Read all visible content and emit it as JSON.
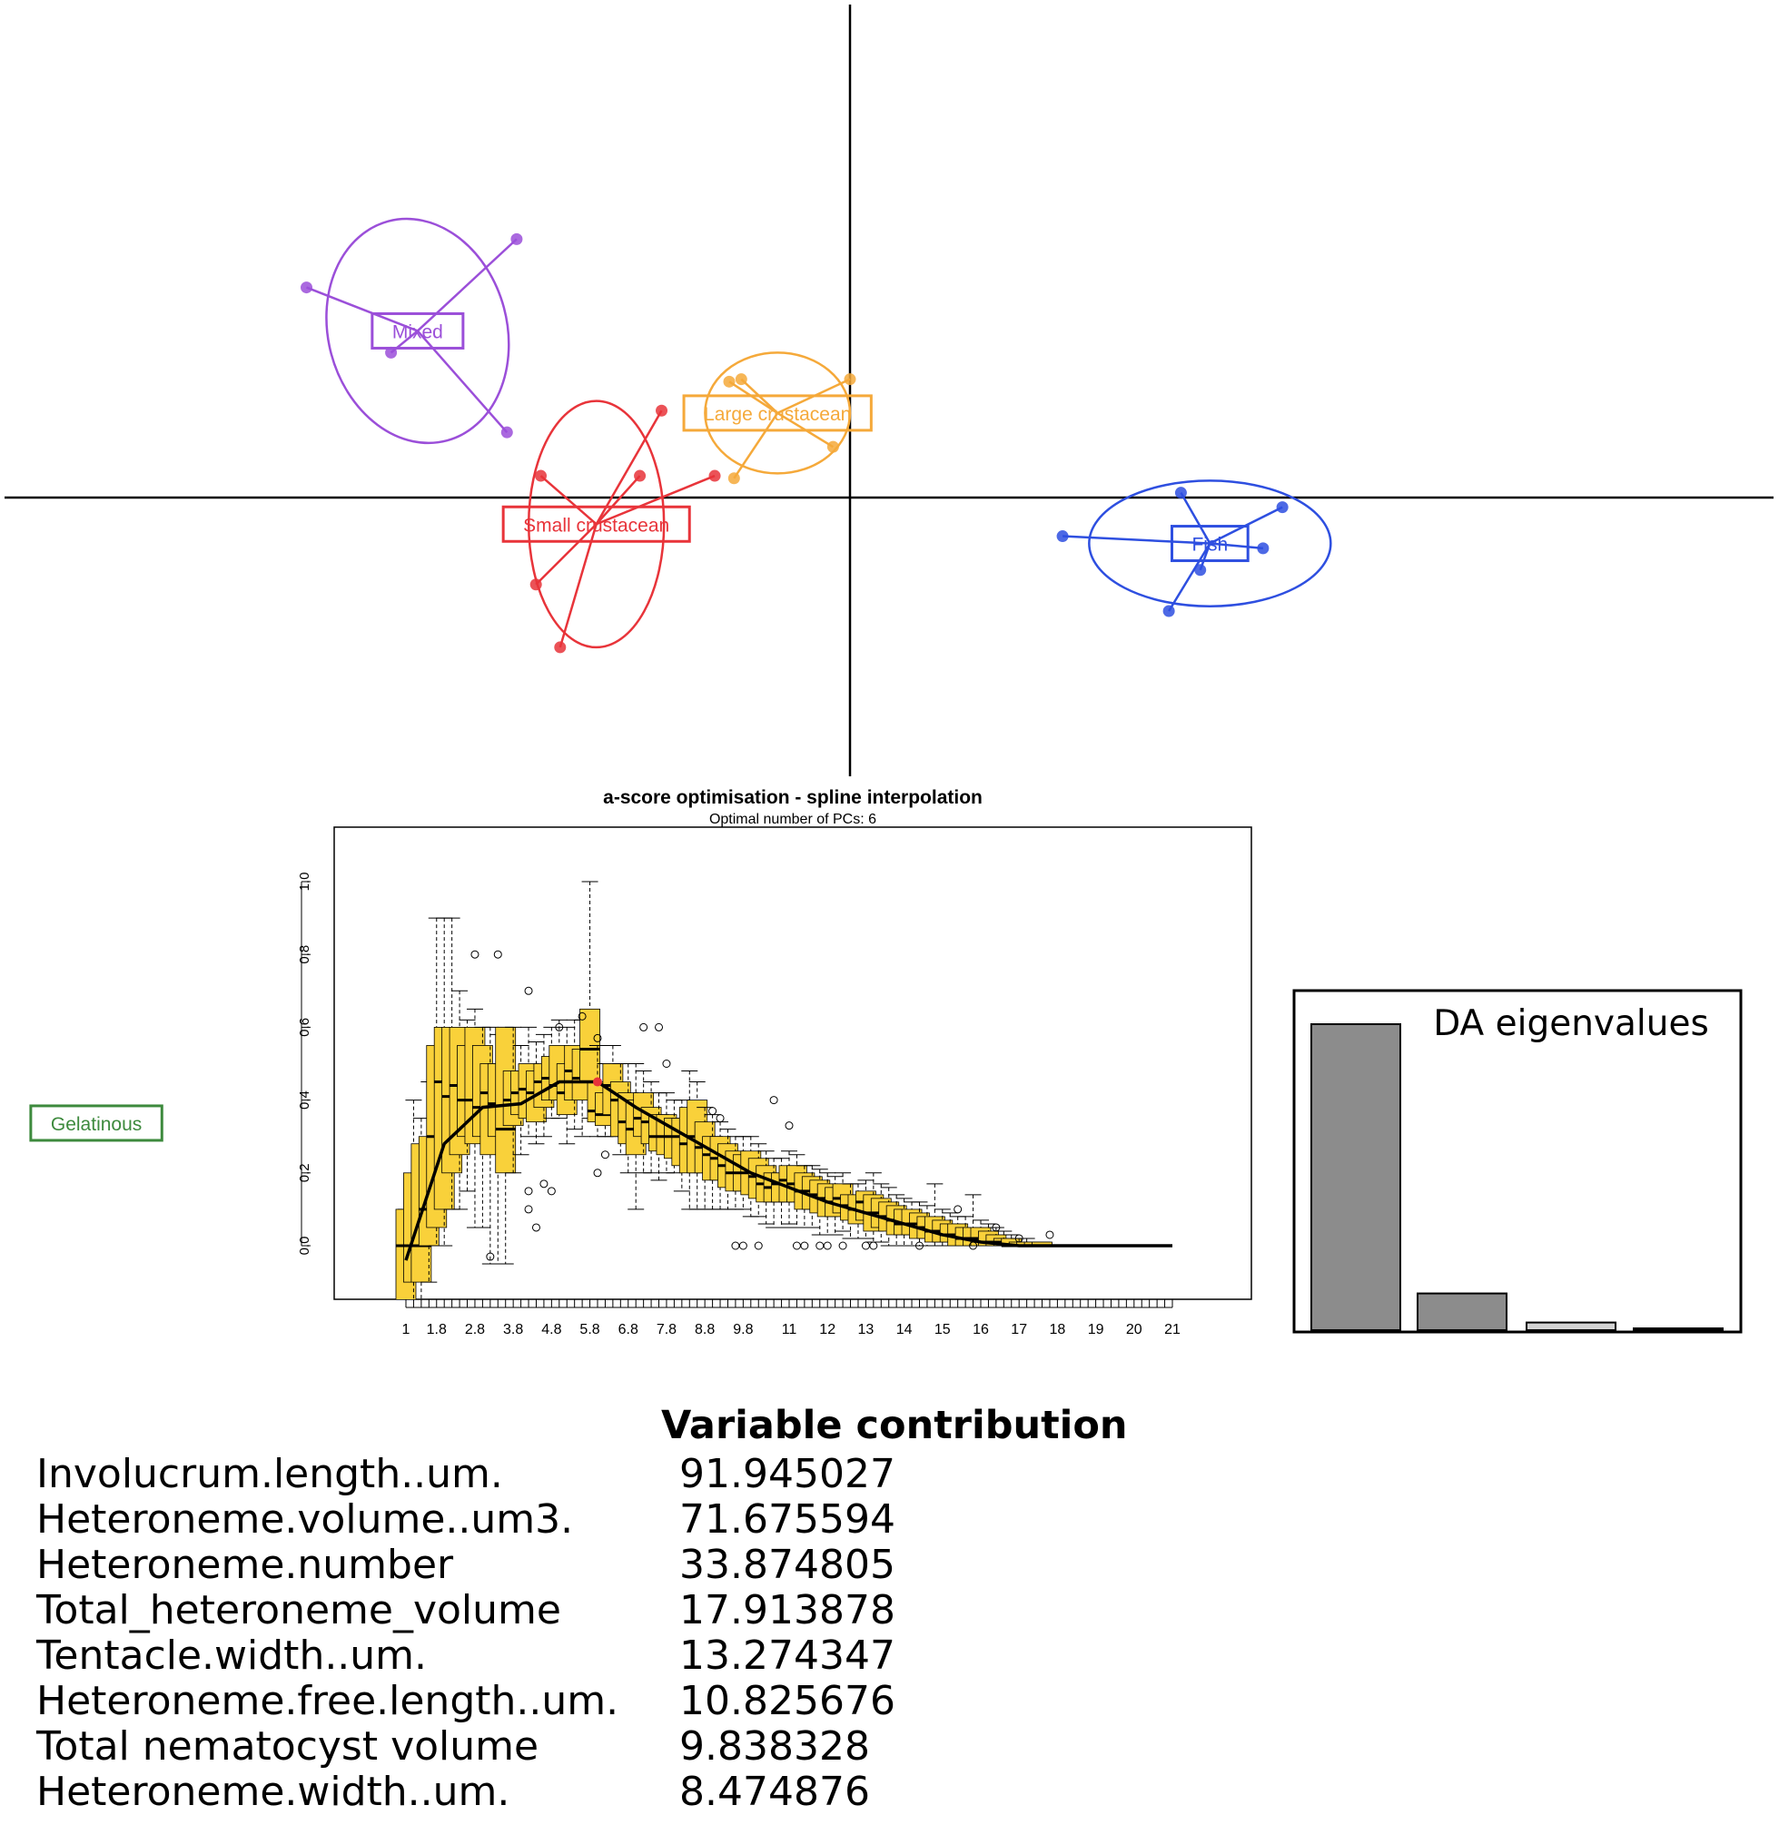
{
  "scatter": {
    "type": "scatter",
    "axes": "origin-crosshair",
    "groups": [
      {
        "name": "Mixed",
        "color": "#9B4FD9",
        "center": [
          -1.79,
          0.69
        ],
        "points": [
          [
            -2.25,
            0.87
          ],
          [
            -1.9,
            0.6
          ],
          [
            -1.38,
            1.07
          ],
          [
            -1.42,
            0.27
          ]
        ],
        "ellipse": {
          "rx": 0.37,
          "ry": 0.47,
          "angle": 15
        }
      },
      {
        "name": "Large crustacean",
        "color": "#F5A93A",
        "center": [
          -0.3,
          0.35
        ],
        "points": [
          [
            -0.45,
            0.49
          ],
          [
            -0.5,
            0.48
          ],
          [
            0.0,
            0.49
          ],
          [
            -0.07,
            0.21
          ],
          [
            -0.48,
            0.08
          ]
        ],
        "ellipse": {
          "rx": 0.3,
          "ry": 0.25,
          "angle": 0
        }
      },
      {
        "name": "Small crustacean",
        "color": "#E8343A",
        "center": [
          -1.05,
          -0.11
        ],
        "points": [
          [
            -1.28,
            0.09
          ],
          [
            -0.87,
            0.09
          ],
          [
            -0.56,
            0.09
          ],
          [
            -1.3,
            -0.36
          ],
          [
            -1.2,
            -0.62
          ],
          [
            -0.78,
            0.36
          ]
        ],
        "ellipse": {
          "rx": 0.28,
          "ry": 0.51,
          "angle": 0
        }
      },
      {
        "name": "Fish",
        "color": "#2E4FE0",
        "center": [
          1.49,
          -0.19
        ],
        "points": [
          [
            1.37,
            0.02
          ],
          [
            1.79,
            -0.04
          ],
          [
            1.71,
            -0.21
          ],
          [
            1.45,
            -0.3
          ],
          [
            1.32,
            -0.47
          ],
          [
            0.88,
            -0.16
          ]
        ],
        "ellipse": {
          "rx": 0.5,
          "ry": 0.26,
          "angle": 0
        }
      },
      {
        "name": "Gelatinous",
        "color": "#3D8A3D",
        "center": [
          -3.12,
          -2.59
        ],
        "points": [],
        "ellipse": null
      }
    ]
  },
  "chart_data": {
    "type": "box",
    "title": "a-score optimisation - spline interpolation",
    "subtitle": "Optimal number of PCs: 6",
    "xlabel": "",
    "ylabel": "",
    "x_tick_labels": [
      "1",
      "1.8",
      "2.8",
      "3.8",
      "4.8",
      "5.8",
      "6.8",
      "7.8",
      "8.8",
      "9.8",
      "11",
      "12",
      "13",
      "14",
      "15",
      "16",
      "17",
      "18",
      "19",
      "20",
      "21"
    ],
    "x_tick_values": [
      1,
      1.8,
      2.8,
      3.8,
      4.8,
      5.8,
      6.8,
      7.8,
      8.8,
      9.8,
      11,
      12,
      13,
      14,
      15,
      16,
      17,
      18,
      19,
      20,
      21
    ],
    "y_ticks": [
      "0.0",
      "0.2",
      "0.4",
      "0.6",
      "0.8",
      "1.0"
    ],
    "xlim": [
      1,
      21
    ],
    "ylim": [
      -0.15,
      1.15
    ],
    "box_color": "#F9D13A",
    "optimum": {
      "x": 6,
      "y": 0.45,
      "color": "#E8343A"
    },
    "boxes": [
      {
        "x": 1,
        "q1": -0.25,
        "median": 0.0,
        "q3": 0.1,
        "lo": -0.25,
        "hi": 0.1
      },
      {
        "x": 1.2,
        "q1": -0.1,
        "median": 0.0,
        "q3": 0.2,
        "lo": -0.2,
        "hi": 0.4
      },
      {
        "x": 1.4,
        "q1": -0.1,
        "median": 0.0,
        "q3": 0.28,
        "lo": -0.15,
        "hi": 0.35
      },
      {
        "x": 1.6,
        "q1": 0.0,
        "median": 0.1,
        "q3": 0.3,
        "lo": -0.1,
        "hi": 0.45
      },
      {
        "x": 1.8,
        "q1": 0.05,
        "median": 0.3,
        "q3": 0.55,
        "lo": 0.0,
        "hi": 0.9
      },
      {
        "x": 2.0,
        "q1": 0.1,
        "median": 0.45,
        "q3": 0.6,
        "lo": 0.0,
        "hi": 0.9
      },
      {
        "x": 2.2,
        "q1": 0.2,
        "median": 0.41,
        "q3": 0.6,
        "lo": 0.1,
        "hi": 0.9
      },
      {
        "x": 2.4,
        "q1": 0.25,
        "median": 0.44,
        "q3": 0.6,
        "lo": 0.1,
        "hi": 0.7
      },
      {
        "x": 2.6,
        "q1": 0.3,
        "median": 0.4,
        "q3": 0.55,
        "lo": 0.15,
        "hi": 0.62
      },
      {
        "x": 2.8,
        "q1": 0.28,
        "median": 0.4,
        "q3": 0.6,
        "lo": 0.05,
        "hi": 0.65
      },
      {
        "x": 3.0,
        "q1": 0.3,
        "median": 0.38,
        "q3": 0.55,
        "lo": 0.05,
        "hi": 0.6
      },
      {
        "x": 3.2,
        "q1": 0.25,
        "median": 0.42,
        "q3": 0.5,
        "lo": -0.05,
        "hi": 0.6
      },
      {
        "x": 3.4,
        "q1": 0.3,
        "median": 0.39,
        "q3": 0.5,
        "lo": -0.05,
        "hi": 0.58
      },
      {
        "x": 3.6,
        "q1": 0.2,
        "median": 0.32,
        "q3": 0.6,
        "lo": -0.05,
        "hi": 0.6
      },
      {
        "x": 3.8,
        "q1": 0.33,
        "median": 0.4,
        "q3": 0.48,
        "lo": 0.2,
        "hi": 0.6
      },
      {
        "x": 4.0,
        "q1": 0.36,
        "median": 0.42,
        "q3": 0.48,
        "lo": 0.25,
        "hi": 0.55
      },
      {
        "x": 4.2,
        "q1": 0.35,
        "median": 0.43,
        "q3": 0.5,
        "lo": 0.3,
        "hi": 0.6
      },
      {
        "x": 4.4,
        "q1": 0.34,
        "median": 0.42,
        "q3": 0.48,
        "lo": 0.28,
        "hi": 0.56
      },
      {
        "x": 4.6,
        "q1": 0.38,
        "median": 0.45,
        "q3": 0.5,
        "lo": 0.3,
        "hi": 0.58
      },
      {
        "x": 4.8,
        "q1": 0.4,
        "median": 0.46,
        "q3": 0.52,
        "lo": 0.35,
        "hi": 0.6
      },
      {
        "x": 5.0,
        "q1": 0.4,
        "median": 0.44,
        "q3": 0.55,
        "lo": 0.35,
        "hi": 0.62
      },
      {
        "x": 5.2,
        "q1": 0.36,
        "median": 0.42,
        "q3": 0.5,
        "lo": 0.28,
        "hi": 0.6
      },
      {
        "x": 5.4,
        "q1": 0.4,
        "median": 0.48,
        "q3": 0.55,
        "lo": 0.32,
        "hi": 0.62
      },
      {
        "x": 5.6,
        "q1": 0.4,
        "median": 0.46,
        "q3": 0.54,
        "lo": 0.3,
        "hi": 0.62
      },
      {
        "x": 5.8,
        "q1": 0.45,
        "median": 0.54,
        "q3": 0.65,
        "lo": 0.35,
        "hi": 1.0
      },
      {
        "x": 6.0,
        "q1": 0.34,
        "median": 0.37,
        "q3": 0.45,
        "lo": 0.3,
        "hi": 0.55
      },
      {
        "x": 6.2,
        "q1": 0.33,
        "median": 0.36,
        "q3": 0.42,
        "lo": 0.3,
        "hi": 0.5
      },
      {
        "x": 6.4,
        "q1": 0.36,
        "median": 0.44,
        "q3": 0.5,
        "lo": 0.3,
        "hi": 0.55
      },
      {
        "x": 6.6,
        "q1": 0.3,
        "median": 0.4,
        "q3": 0.45,
        "lo": 0.25,
        "hi": 0.5
      },
      {
        "x": 6.8,
        "q1": 0.28,
        "median": 0.34,
        "q3": 0.42,
        "lo": 0.2,
        "hi": 0.5
      },
      {
        "x": 7.0,
        "q1": 0.25,
        "median": 0.32,
        "q3": 0.4,
        "lo": 0.1,
        "hi": 0.5
      },
      {
        "x": 7.2,
        "q1": 0.3,
        "median": 0.35,
        "q3": 0.42,
        "lo": 0.2,
        "hi": 0.48
      },
      {
        "x": 7.4,
        "q1": 0.28,
        "median": 0.34,
        "q3": 0.38,
        "lo": 0.2,
        "hi": 0.45
      },
      {
        "x": 7.6,
        "q1": 0.26,
        "median": 0.3,
        "q3": 0.36,
        "lo": 0.18,
        "hi": 0.42
      },
      {
        "x": 7.8,
        "q1": 0.25,
        "median": 0.3,
        "q3": 0.36,
        "lo": 0.2,
        "hi": 0.42
      },
      {
        "x": 8.0,
        "q1": 0.24,
        "median": 0.3,
        "q3": 0.35,
        "lo": 0.2,
        "hi": 0.4
      },
      {
        "x": 8.2,
        "q1": 0.22,
        "median": 0.3,
        "q3": 0.35,
        "lo": 0.15,
        "hi": 0.4
      },
      {
        "x": 8.4,
        "q1": 0.2,
        "median": 0.28,
        "q3": 0.38,
        "lo": 0.1,
        "hi": 0.48
      },
      {
        "x": 8.6,
        "q1": 0.2,
        "median": 0.3,
        "q3": 0.4,
        "lo": 0.1,
        "hi": 0.45
      },
      {
        "x": 8.8,
        "q1": 0.2,
        "median": 0.27,
        "q3": 0.34,
        "lo": 0.1,
        "hi": 0.38
      },
      {
        "x": 9.0,
        "q1": 0.18,
        "median": 0.25,
        "q3": 0.3,
        "lo": 0.1,
        "hi": 0.36
      },
      {
        "x": 9.2,
        "q1": 0.18,
        "median": 0.24,
        "q3": 0.3,
        "lo": 0.1,
        "hi": 0.34
      },
      {
        "x": 9.4,
        "q1": 0.16,
        "median": 0.22,
        "q3": 0.28,
        "lo": 0.1,
        "hi": 0.32
      },
      {
        "x": 9.6,
        "q1": 0.15,
        "median": 0.2,
        "q3": 0.26,
        "lo": 0.1,
        "hi": 0.3
      },
      {
        "x": 9.8,
        "q1": 0.15,
        "median": 0.2,
        "q3": 0.25,
        "lo": 0.1,
        "hi": 0.3
      },
      {
        "x": 10.0,
        "q1": 0.14,
        "median": 0.2,
        "q3": 0.26,
        "lo": 0.08,
        "hi": 0.3
      },
      {
        "x": 10.2,
        "q1": 0.13,
        "median": 0.19,
        "q3": 0.24,
        "lo": 0.08,
        "hi": 0.28
      },
      {
        "x": 10.4,
        "q1": 0.12,
        "median": 0.17,
        "q3": 0.22,
        "lo": 0.06,
        "hi": 0.26
      },
      {
        "x": 10.6,
        "q1": 0.12,
        "median": 0.16,
        "q3": 0.2,
        "lo": 0.05,
        "hi": 0.24
      },
      {
        "x": 10.8,
        "q1": 0.12,
        "median": 0.17,
        "q3": 0.2,
        "lo": 0.05,
        "hi": 0.24
      },
      {
        "x": 11,
        "q1": 0.12,
        "median": 0.18,
        "q3": 0.22,
        "lo": 0.06,
        "hi": 0.26
      },
      {
        "x": 11.2,
        "q1": 0.12,
        "median": 0.17,
        "q3": 0.22,
        "lo": 0.05,
        "hi": 0.25
      },
      {
        "x": 11.4,
        "q1": 0.1,
        "median": 0.15,
        "q3": 0.2,
        "lo": 0.05,
        "hi": 0.22
      },
      {
        "x": 11.6,
        "q1": 0.1,
        "median": 0.15,
        "q3": 0.19,
        "lo": 0.05,
        "hi": 0.22
      },
      {
        "x": 11.8,
        "q1": 0.09,
        "median": 0.14,
        "q3": 0.18,
        "lo": 0.03,
        "hi": 0.21
      },
      {
        "x": 12,
        "q1": 0.08,
        "median": 0.13,
        "q3": 0.17,
        "lo": 0.03,
        "hi": 0.2
      },
      {
        "x": 12.2,
        "q1": 0.08,
        "median": 0.12,
        "q3": 0.16,
        "lo": 0.03,
        "hi": 0.19
      },
      {
        "x": 12.4,
        "q1": 0.09,
        "median": 0.13,
        "q3": 0.17,
        "lo": 0.04,
        "hi": 0.2
      },
      {
        "x": 12.6,
        "q1": 0.07,
        "median": 0.11,
        "q3": 0.14,
        "lo": 0.02,
        "hi": 0.17
      },
      {
        "x": 12.8,
        "q1": 0.06,
        "median": 0.1,
        "q3": 0.14,
        "lo": 0.02,
        "hi": 0.17
      },
      {
        "x": 13,
        "q1": 0.07,
        "median": 0.12,
        "q3": 0.15,
        "lo": 0.02,
        "hi": 0.18
      },
      {
        "x": 13.2,
        "q1": 0.04,
        "median": 0.09,
        "q3": 0.14,
        "lo": 0.01,
        "hi": 0.2
      },
      {
        "x": 13.4,
        "q1": 0.05,
        "median": 0.09,
        "q3": 0.13,
        "lo": 0.01,
        "hi": 0.17
      },
      {
        "x": 13.6,
        "q1": 0.04,
        "median": 0.08,
        "q3": 0.12,
        "lo": 0.0,
        "hi": 0.16
      },
      {
        "x": 13.8,
        "q1": 0.03,
        "median": 0.07,
        "q3": 0.11,
        "lo": 0.0,
        "hi": 0.14
      },
      {
        "x": 14,
        "q1": 0.03,
        "median": 0.06,
        "q3": 0.1,
        "lo": 0.0,
        "hi": 0.13
      },
      {
        "x": 14.2,
        "q1": 0.03,
        "median": 0.06,
        "q3": 0.1,
        "lo": 0.0,
        "hi": 0.12
      },
      {
        "x": 14.4,
        "q1": 0.02,
        "median": 0.06,
        "q3": 0.09,
        "lo": 0.0,
        "hi": 0.12
      },
      {
        "x": 14.6,
        "q1": 0.02,
        "median": 0.05,
        "q3": 0.08,
        "lo": 0.0,
        "hi": 0.11
      },
      {
        "x": 14.8,
        "q1": 0.01,
        "median": 0.04,
        "q3": 0.08,
        "lo": 0.0,
        "hi": 0.17
      },
      {
        "x": 15,
        "q1": 0.01,
        "median": 0.04,
        "q3": 0.07,
        "lo": 0.0,
        "hi": 0.1
      },
      {
        "x": 15.2,
        "q1": 0.01,
        "median": 0.03,
        "q3": 0.06,
        "lo": 0.0,
        "hi": 0.09
      },
      {
        "x": 15.4,
        "q1": 0.0,
        "median": 0.03,
        "q3": 0.06,
        "lo": 0.0,
        "hi": 0.08
      },
      {
        "x": 15.6,
        "q1": 0.0,
        "median": 0.02,
        "q3": 0.05,
        "lo": 0.0,
        "hi": 0.08
      },
      {
        "x": 15.8,
        "q1": 0.0,
        "median": 0.02,
        "q3": 0.05,
        "lo": 0.0,
        "hi": 0.14
      },
      {
        "x": 16,
        "q1": 0.0,
        "median": 0.02,
        "q3": 0.05,
        "lo": 0.0,
        "hi": 0.07
      },
      {
        "x": 16.2,
        "q1": 0.0,
        "median": 0.01,
        "q3": 0.04,
        "lo": 0.0,
        "hi": 0.06
      },
      {
        "x": 16.4,
        "q1": 0.0,
        "median": 0.01,
        "q3": 0.03,
        "lo": 0.0,
        "hi": 0.05
      },
      {
        "x": 16.6,
        "q1": 0.0,
        "median": 0.01,
        "q3": 0.02,
        "lo": 0.0,
        "hi": 0.04
      },
      {
        "x": 16.8,
        "q1": 0.0,
        "median": 0.0,
        "q3": 0.02,
        "lo": 0.0,
        "hi": 0.03
      },
      {
        "x": 17,
        "q1": 0.0,
        "median": 0.0,
        "q3": 0.01,
        "lo": 0.0,
        "hi": 0.02
      },
      {
        "x": 17.2,
        "q1": 0.0,
        "median": 0.0,
        "q3": 0.01,
        "lo": 0.0,
        "hi": 0.02
      },
      {
        "x": 17.4,
        "q1": 0.0,
        "median": 0.0,
        "q3": 0.01,
        "lo": 0.0,
        "hi": 0.01
      },
      {
        "x": 17.6,
        "q1": 0.0,
        "median": 0.0,
        "q3": 0.01,
        "lo": 0.0,
        "hi": 0.01
      },
      {
        "x": 17.8,
        "q1": 0.0,
        "median": 0.0,
        "q3": 0.0,
        "lo": 0.0,
        "hi": 0.0
      }
    ],
    "outliers": [
      [
        2.8,
        0.8
      ],
      [
        3.4,
        0.8
      ],
      [
        3.2,
        -0.03
      ],
      [
        4.2,
        0.7
      ],
      [
        4.2,
        0.15
      ],
      [
        4.2,
        0.1
      ],
      [
        4.4,
        0.05
      ],
      [
        4.6,
        0.17
      ],
      [
        4.8,
        0.15
      ],
      [
        5.0,
        0.6
      ],
      [
        5.6,
        0.63
      ],
      [
        6.0,
        0.57
      ],
      [
        6.0,
        0.2
      ],
      [
        6.2,
        0.25
      ],
      [
        7.2,
        0.6
      ],
      [
        7.6,
        0.6
      ],
      [
        7.8,
        0.5
      ],
      [
        9.0,
        0.37
      ],
      [
        9.2,
        0.35
      ],
      [
        9.6,
        0.0
      ],
      [
        9.8,
        0.0
      ],
      [
        10.2,
        0.0
      ],
      [
        10.6,
        0.4
      ],
      [
        11.0,
        0.33
      ],
      [
        11.2,
        0.0
      ],
      [
        11.4,
        0.0
      ],
      [
        11.8,
        0.0
      ],
      [
        12.0,
        0.0
      ],
      [
        12.4,
        0.0
      ],
      [
        13.0,
        0.0
      ],
      [
        13.2,
        0.0
      ],
      [
        14.4,
        0.0
      ],
      [
        15.4,
        0.1
      ],
      [
        15.8,
        0.0
      ],
      [
        16.4,
        0.05
      ],
      [
        17.0,
        0.02
      ],
      [
        17.8,
        0.03
      ]
    ],
    "trend": [
      [
        1,
        -0.04
      ],
      [
        2,
        0.28
      ],
      [
        3,
        0.38
      ],
      [
        4,
        0.39
      ],
      [
        5,
        0.45
      ],
      [
        6,
        0.45
      ],
      [
        7,
        0.38
      ],
      [
        8,
        0.32
      ],
      [
        9,
        0.26
      ],
      [
        10,
        0.2
      ],
      [
        11,
        0.16
      ],
      [
        12,
        0.12
      ],
      [
        13,
        0.09
      ],
      [
        14,
        0.06
      ],
      [
        15,
        0.03
      ],
      [
        16,
        0.01
      ],
      [
        17,
        0.0
      ],
      [
        18,
        0.0
      ],
      [
        19,
        0.0
      ],
      [
        20,
        0.0
      ],
      [
        21,
        0.0
      ]
    ]
  },
  "eigen": {
    "title": "DA eigenvalues",
    "values": [
      1.0,
      0.12,
      0.025,
      0.004
    ],
    "colors": [
      "#8c8c8c",
      "#8c8c8c",
      "#d3d3d3",
      "#ffffff"
    ]
  },
  "contrib": {
    "title": "Variable contribution",
    "rows": [
      {
        "name": "Involucrum.length..um.",
        "value": "91.945027"
      },
      {
        "name": "Heteroneme.volume..um3.",
        "value": "71.675594"
      },
      {
        "name": "Heteroneme.number",
        "value": "33.874805"
      },
      {
        "name": "Total_heteroneme_volume",
        "value": "17.913878"
      },
      {
        "name": "Tentacle.width..um.",
        "value": "13.274347"
      },
      {
        "name": "Heteroneme.free.length..um.",
        "value": "10.825676"
      },
      {
        "name": "Total nematocyst volume",
        "value": "9.838328"
      },
      {
        "name": "Heteroneme.width..um.",
        "value": "8.474876"
      }
    ]
  }
}
